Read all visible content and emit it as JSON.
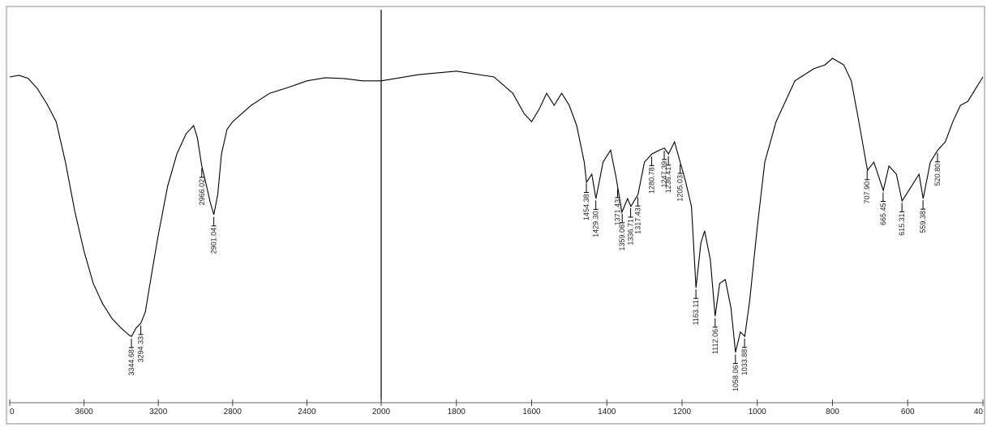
{
  "chart_data": {
    "type": "line",
    "x": [
      4000,
      3950,
      3900,
      3850,
      3800,
      3750,
      3700,
      3650,
      3600,
      3550,
      3500,
      3450,
      3400,
      3360,
      3344,
      3320,
      3294,
      3270,
      3230,
      3200,
      3150,
      3100,
      3050,
      3010,
      2990,
      2966,
      2940,
      2920,
      2901,
      2880,
      2860,
      2830,
      2800,
      2700,
      2600,
      2500,
      2400,
      2300,
      2200,
      2100,
      2000,
      1900,
      1800,
      1700,
      1650,
      1620,
      1600,
      1580,
      1560,
      1540,
      1520,
      1500,
      1480,
      1460,
      1454,
      1440,
      1429,
      1410,
      1390,
      1375,
      1360,
      1345,
      1336,
      1317,
      1300,
      1280,
      1260,
      1247,
      1236,
      1220,
      1205,
      1190,
      1175,
      1163,
      1150,
      1140,
      1125,
      1112,
      1100,
      1085,
      1070,
      1058,
      1045,
      1033,
      1020,
      1000,
      980,
      950,
      900,
      850,
      820,
      800,
      770,
      750,
      730,
      707,
      690,
      665,
      650,
      630,
      615,
      590,
      570,
      559,
      540,
      520,
      500,
      480,
      460,
      440,
      420,
      400
    ],
    "series": [
      {
        "color": "#000000",
        "values": [
          82.3,
          82.7,
          81.9,
          79.2,
          75.4,
          70.8,
          60.4,
          47.9,
          37.5,
          29.2,
          24.0,
          20.2,
          17.7,
          16.0,
          15.6,
          17.7,
          19.0,
          21.9,
          33.3,
          41.7,
          54.2,
          62.5,
          67.7,
          69.8,
          66.7,
          59.4,
          54.2,
          50.0,
          46.9,
          52.1,
          62.5,
          68.8,
          70.8,
          75.0,
          78.1,
          79.6,
          81.3,
          82.1,
          81.9,
          81.3,
          81.3,
          82.9,
          83.8,
          82.3,
          78.1,
          72.9,
          70.8,
          74.0,
          78.1,
          75.0,
          78.1,
          75.0,
          69.8,
          60.4,
          55.2,
          57.3,
          51.0,
          60.4,
          63.5,
          56.3,
          47.5,
          51.0,
          49.0,
          52.1,
          60.4,
          62.5,
          63.5,
          64.0,
          62.5,
          65.6,
          60.4,
          55.2,
          49.0,
          28.1,
          39.6,
          42.7,
          35.4,
          20.8,
          29.2,
          30.2,
          22.9,
          11.5,
          16.7,
          15.6,
          25.0,
          43.8,
          60.4,
          70.8,
          81.3,
          84.4,
          85.4,
          87.1,
          85.4,
          81.3,
          70.8,
          58.3,
          60.4,
          53.1,
          59.4,
          57.3,
          50.4,
          54.2,
          57.3,
          51.0,
          60.4,
          63.5,
          65.6,
          70.8,
          75.0,
          76.0,
          79.2,
          82.3
        ]
      }
    ],
    "xlim": [
      4000,
      400
    ],
    "xbreak": 2000,
    "ylim": [
      0,
      100
    ],
    "xticks": [
      {
        "value": 4000,
        "label": "0"
      },
      3600,
      3200,
      2800,
      2400,
      2000,
      1800,
      1600,
      1400,
      1200,
      1000,
      800,
      600,
      {
        "value": 400,
        "label": "40"
      }
    ],
    "peaks": [
      {
        "value": 3344.68,
        "label": "3344.68"
      },
      {
        "value": 3294.33,
        "label": "3294.33"
      },
      {
        "value": 2966.02,
        "label": "2966.02"
      },
      {
        "value": 2901.04,
        "label": "2901.04"
      },
      {
        "value": 1454.38,
        "label": "1454.38"
      },
      {
        "value": 1429.3,
        "label": "1429.30"
      },
      {
        "value": 1371.43,
        "label": "1371.43"
      },
      {
        "value": 1359.06,
        "label": "1359.06"
      },
      {
        "value": 1336.71,
        "label": "1336.71"
      },
      {
        "value": 1317.43,
        "label": "1317.43"
      },
      {
        "value": 1280.78,
        "label": "1280.78"
      },
      {
        "value": 1247.39,
        "label": "1247.39"
      },
      {
        "value": 1236.41,
        "label": "1236.41"
      },
      {
        "value": 1205.03,
        "label": "1205.03"
      },
      {
        "value": 1163.11,
        "label": "1163.11"
      },
      {
        "value": 1112.06,
        "label": "1112.06"
      },
      {
        "value": 1058.06,
        "label": "1058.06"
      },
      {
        "value": 1033.88,
        "label": "1033.88"
      },
      {
        "value": 707.9,
        "label": "707.90"
      },
      {
        "value": 665.45,
        "label": "665.45"
      },
      {
        "value": 615.31,
        "label": "615.31"
      },
      {
        "value": 559.38,
        "label": "559.38"
      },
      {
        "value": 520.8,
        "label": "520.80"
      }
    ]
  }
}
